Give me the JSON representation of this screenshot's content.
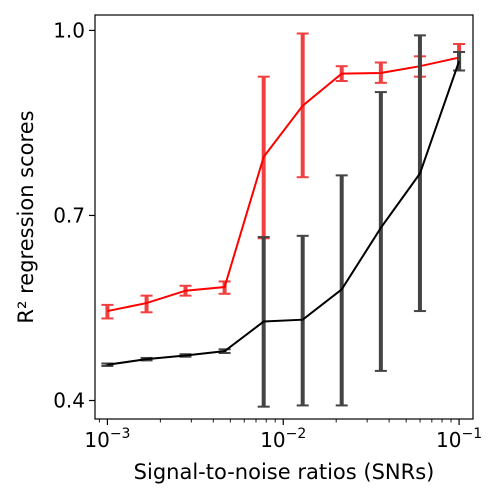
{
  "chart_data": {
    "type": "line",
    "xscale": "log",
    "xlabel": "Signal-to-noise ratios (SNRs)",
    "ylabel": "R² regression scores",
    "xlim": [
      0.00085,
      0.12
    ],
    "ylim": [
      0.37,
      1.025
    ],
    "yticks": [
      0.4,
      0.7,
      1.0
    ],
    "ytick_labels": [
      "0.4",
      "0.7",
      "1.0"
    ],
    "xticks": [
      {
        "value": 0.001,
        "base": "10",
        "exp": "−3"
      },
      {
        "value": 0.01,
        "base": "10",
        "exp": "−2"
      },
      {
        "value": 0.1,
        "base": "10",
        "exp": "−1"
      }
    ],
    "grid": false,
    "x": [
      0.001,
      0.00167,
      0.00278,
      0.00464,
      0.00774,
      0.0129,
      0.0215,
      0.0359,
      0.0599,
      0.1
    ],
    "series": [
      {
        "color": "#ff0000",
        "errorbar_color": "#f04040",
        "values": [
          0.545,
          0.558,
          0.578,
          0.584,
          0.795,
          0.878,
          0.93,
          0.931,
          0.942,
          0.956
        ],
        "err_low": [
          0.533,
          0.543,
          0.57,
          0.573,
          0.663,
          0.762,
          0.918,
          0.915,
          0.925,
          0.935
        ],
        "err_high": [
          0.555,
          0.57,
          0.586,
          0.593,
          0.925,
          0.995,
          0.942,
          0.948,
          0.958,
          0.978
        ]
      },
      {
        "color": "#000000",
        "errorbar_color": "#444444",
        "values": [
          0.458,
          0.467,
          0.473,
          0.48,
          0.528,
          0.531,
          0.58,
          0.68,
          0.768,
          0.95
        ],
        "err_low": [
          0.456,
          0.465,
          0.471,
          0.477,
          0.39,
          0.392,
          0.392,
          0.448,
          0.545,
          0.935
        ],
        "err_high": [
          0.46,
          0.469,
          0.475,
          0.483,
          0.665,
          0.667,
          0.765,
          0.9,
          0.992,
          0.965
        ]
      }
    ]
  }
}
